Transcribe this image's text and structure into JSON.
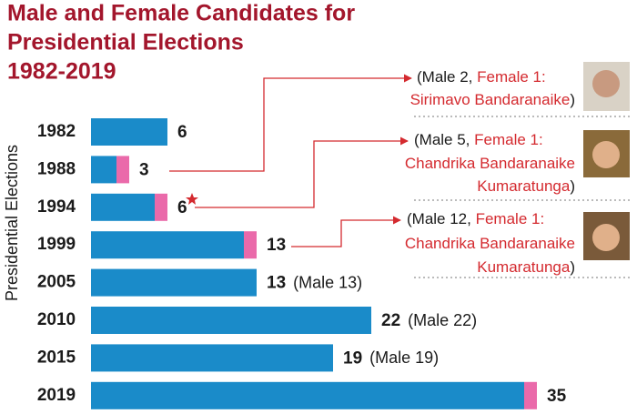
{
  "chart_data": {
    "type": "stacked_bar_horizontal",
    "title": [
      "Male and Female Candidates for",
      "Presidential Elections"
    ],
    "subtitle": "1982-2019",
    "y_label": "Presidential Elections",
    "categories": [
      "1982",
      "1988",
      "1994",
      "1999",
      "2005",
      "2010",
      "2015",
      "2019"
    ],
    "series": [
      {
        "color": "#1a8bc9",
        "values": [
          6,
          2,
          5,
          12,
          13,
          22,
          19,
          34
        ]
      },
      {
        "color": "#ea6aaa",
        "values": [
          0,
          1,
          1,
          1,
          0,
          0,
          0,
          1
        ]
      }
    ],
    "totals": [
      6,
      3,
      6,
      13,
      13,
      22,
      19,
      35
    ],
    "notes": [
      null,
      null,
      null,
      null,
      "(Male 13)",
      "(Male 22)",
      "(Male 19)",
      null
    ],
    "callouts": [
      {
        "lines": [
          [
            {
              "text": "(Male 2, "
            },
            {
              "text": "Female 1:",
              "color": "#d42a2f"
            }
          ],
          [
            {
              "text": "Sirimavo Bandaranaike",
              "color": "#d42a2f"
            },
            {
              "text": ")"
            }
          ]
        ]
      },
      {
        "lines": [
          [
            {
              "text": "(Male 5, "
            },
            {
              "text": "Female 1:",
              "color": "#d42a2f"
            }
          ],
          [
            {
              "text": "Chandrika Bandaranaike",
              "color": "#d42a2f"
            }
          ],
          [
            {
              "text": "Kumaratunga",
              "color": "#d42a2f"
            },
            {
              "text": ")"
            }
          ]
        ]
      },
      {
        "lines": [
          [
            {
              "text": "(Male 12, "
            },
            {
              "text": "Female 1:",
              "color": "#d42a2f"
            }
          ],
          [
            {
              "text": "Chandrika Bandaranaike",
              "color": "#d42a2f"
            }
          ],
          [
            {
              "text": "Kumaratunga",
              "color": "#d42a2f"
            },
            {
              "text": ")"
            }
          ]
        ]
      }
    ]
  }
}
